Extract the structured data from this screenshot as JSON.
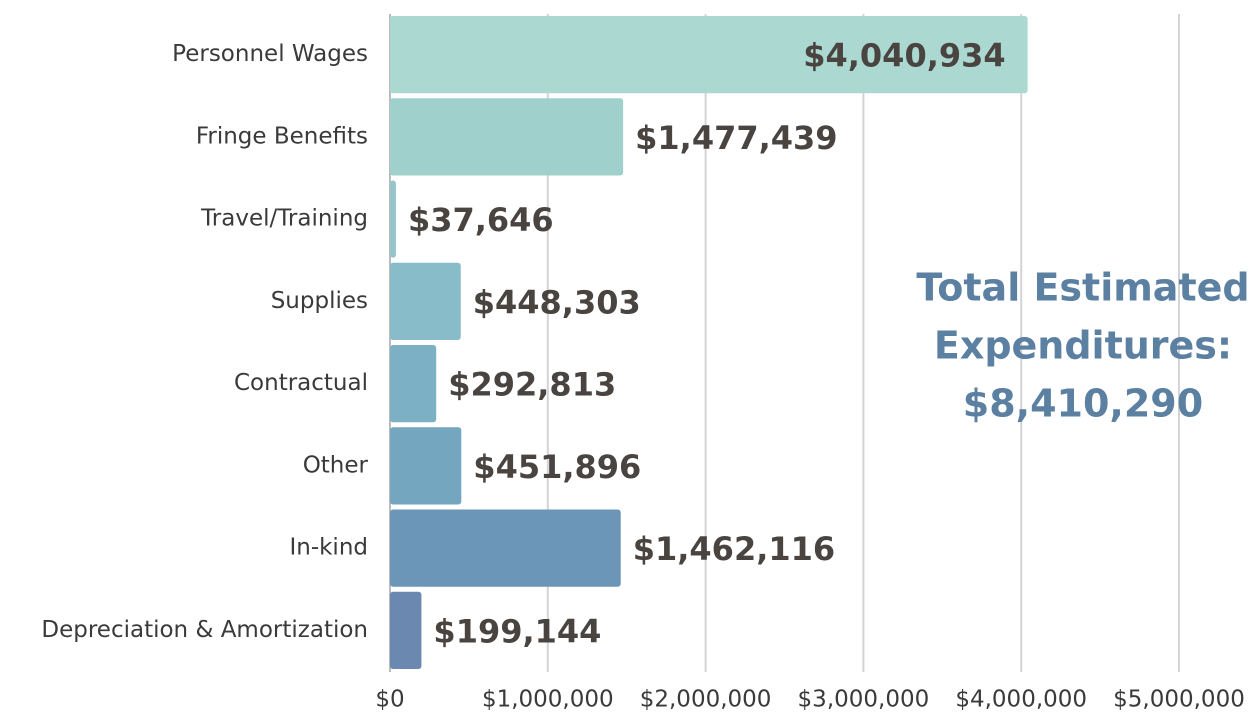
{
  "chart_data": {
    "type": "bar",
    "orientation": "horizontal",
    "categories": [
      "Personnel Wages",
      "Fringe Benefits",
      "Travel/Training",
      "Supplies",
      "Contractual",
      "Other",
      "In-kind",
      "Depreciation & Amortization"
    ],
    "values": [
      4040934,
      1477439,
      37646,
      448303,
      292813,
      451896,
      1462116,
      199144
    ],
    "value_labels": [
      "$4,040,934",
      "$1,477,439",
      "$37,646",
      "$448,303",
      "$292,813",
      "$451,896",
      "$1,462,116",
      "$199,144"
    ],
    "colors": [
      "#acd8d2",
      "#a0d0cc",
      "#94c6c9",
      "#88bcc8",
      "#7cb0c4",
      "#74a6c0",
      "#6c96b8",
      "#6a88b0"
    ],
    "xlim": [
      0,
      5000000
    ],
    "xticks": [
      {
        "value": 0,
        "label": "$0"
      },
      {
        "value": 1000000,
        "label": "$1,000,000"
      },
      {
        "value": 2000000,
        "label": "$2,000,000"
      },
      {
        "value": 3000000,
        "label": "$3,000,000"
      },
      {
        "value": 4000000,
        "label": "$4,000,000"
      },
      {
        "value": 5000000,
        "label": "$5,000,000"
      }
    ],
    "grid": true,
    "annotation": [
      "Total Estimated",
      "Expenditures:",
      "$8,410,290"
    ]
  }
}
